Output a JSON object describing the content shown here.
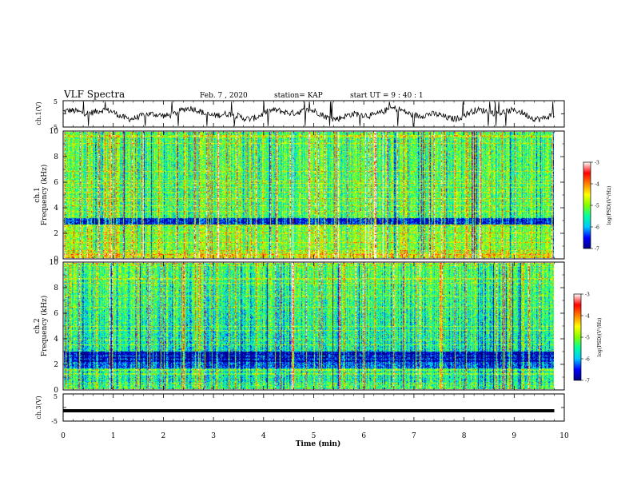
{
  "header": {
    "title": "VLF Spectra",
    "date": "Feb. 7 , 2020",
    "station": "station= KAP",
    "start_ut": "start UT =  9 : 40 : 1"
  },
  "chart_data": [
    {
      "type": "line",
      "name": "ch1-waveform",
      "ylabel": "ch.1(V)",
      "ylim": [
        -5,
        5
      ],
      "yticks": [
        "5",
        "-5"
      ],
      "xlim": [
        0,
        9.8
      ]
    },
    {
      "type": "heatmap",
      "name": "ch1-spectrogram",
      "ylabel": "ch.1\nFrequency (kHz)",
      "ylim": [
        0,
        10
      ],
      "yticks": [
        "0",
        "2",
        "4",
        "6",
        "8",
        "10"
      ],
      "xlim": [
        0,
        9.8
      ],
      "colorbar": {
        "label": "log(PSD)(V²/Hz)",
        "range": [
          -7,
          -3
        ],
        "ticks": [
          "-3",
          "-4",
          "-5",
          "-6",
          "-7"
        ]
      }
    },
    {
      "type": "heatmap",
      "name": "ch2-spectrogram",
      "ylabel": "ch.2\nFrequency (kHz)",
      "ylim": [
        0,
        10
      ],
      "yticks": [
        "0",
        "2",
        "4",
        "6",
        "8",
        "10"
      ],
      "xlim": [
        0,
        9.8
      ],
      "colorbar": {
        "label": "log(PSD)(V²/Hz)",
        "range": [
          -7,
          -3
        ],
        "ticks": [
          "-3",
          "-4",
          "-5",
          "-6",
          "-7"
        ]
      }
    },
    {
      "type": "line",
      "name": "ch3-waveform",
      "ylabel": "ch.3(V)",
      "ylim": [
        -5,
        5
      ],
      "yticks": [
        "5",
        "-5"
      ],
      "xlim": [
        0,
        9.8
      ],
      "values": [
        -1.2
      ]
    }
  ],
  "x_axis": {
    "label": "Time  (min)",
    "range": [
      0,
      10
    ],
    "ticks": [
      "0",
      "1",
      "2",
      "3",
      "4",
      "5",
      "6",
      "7",
      "8",
      "9",
      "10"
    ]
  },
  "colors": {
    "colormap": [
      "#00007f",
      "#0000ff",
      "#00c8ff",
      "#00ffa0",
      "#80ff00",
      "#ffff00",
      "#ff8000",
      "#ff0000",
      "#ffffff"
    ]
  }
}
